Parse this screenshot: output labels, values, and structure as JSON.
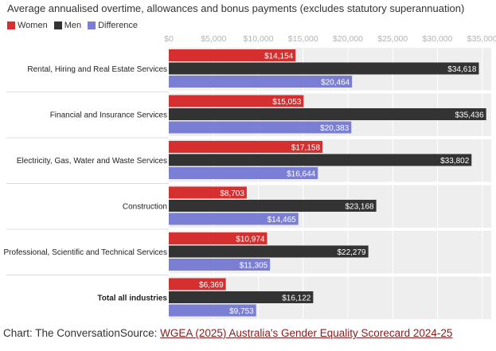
{
  "chart_data": {
    "type": "bar",
    "orientation": "horizontal",
    "title": "Average annualised overtime, allowances and bonus payments (excludes statutory superannuation)",
    "categories": [
      "Rental, Hiring and Real Estate Services",
      "Financial and Insurance Services",
      "Electricity, Gas, Water and Waste Services",
      "Construction",
      "Professional, Scientific and Technical Services",
      "Total all industries"
    ],
    "series": [
      {
        "name": "Women",
        "color": "#d62f2f",
        "values": [
          14154,
          15053,
          17158,
          8703,
          10974,
          6369
        ],
        "labels": [
          "$14,154",
          "$15,053",
          "$17,158",
          "$8,703",
          "$10,974",
          "$6,369"
        ]
      },
      {
        "name": "Men",
        "color": "#333333",
        "values": [
          34618,
          35436,
          33802,
          23168,
          22279,
          16122
        ],
        "labels": [
          "$34,618",
          "$35,436",
          "$33,802",
          "$23,168",
          "$22,279",
          "$16,122"
        ]
      },
      {
        "name": "Difference",
        "color": "#7b7fd4",
        "values": [
          20464,
          20383,
          16644,
          14465,
          11305,
          9753
        ],
        "labels": [
          "$20,464",
          "$20,383",
          "$16,644",
          "$14,465",
          "$11,305",
          "$9,753"
        ]
      }
    ],
    "xticks": [
      0,
      5000,
      10000,
      15000,
      20000,
      25000,
      30000,
      35000
    ],
    "xtick_labels": [
      "$0",
      "$5,000",
      "$10,000",
      "$15,000",
      "$20,000",
      "$25,000",
      "$30,000",
      "$35,000"
    ],
    "xlim": [
      0,
      36000
    ],
    "bold_categories": [
      "Total all industries"
    ],
    "xlabel": "",
    "ylabel": "",
    "legend_position": "top-left"
  },
  "footer": {
    "credit": "Chart: The Conversation",
    "source_prefix": "Source: ",
    "source_link": "WGEA (2025) Australia's Gender Equality Scorecard 2024-25"
  }
}
